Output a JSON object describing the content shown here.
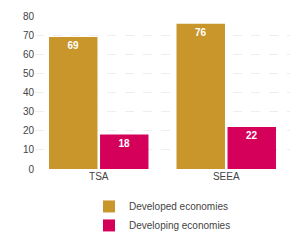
{
  "chart_data": {
    "type": "bar",
    "categories": [
      "TSA",
      "SEEA"
    ],
    "series": [
      {
        "name": "Developed economies",
        "color": "#C8962A",
        "values": [
          69,
          76
        ]
      },
      {
        "name": "Developing economies",
        "color": "#D4005A",
        "values": [
          18,
          22
        ]
      }
    ],
    "ylim": [
      0,
      80
    ],
    "yticks": [
      0,
      10,
      20,
      30,
      40,
      50,
      60,
      70,
      80
    ],
    "grid": true,
    "data_labels": true,
    "legend": "bottom"
  }
}
